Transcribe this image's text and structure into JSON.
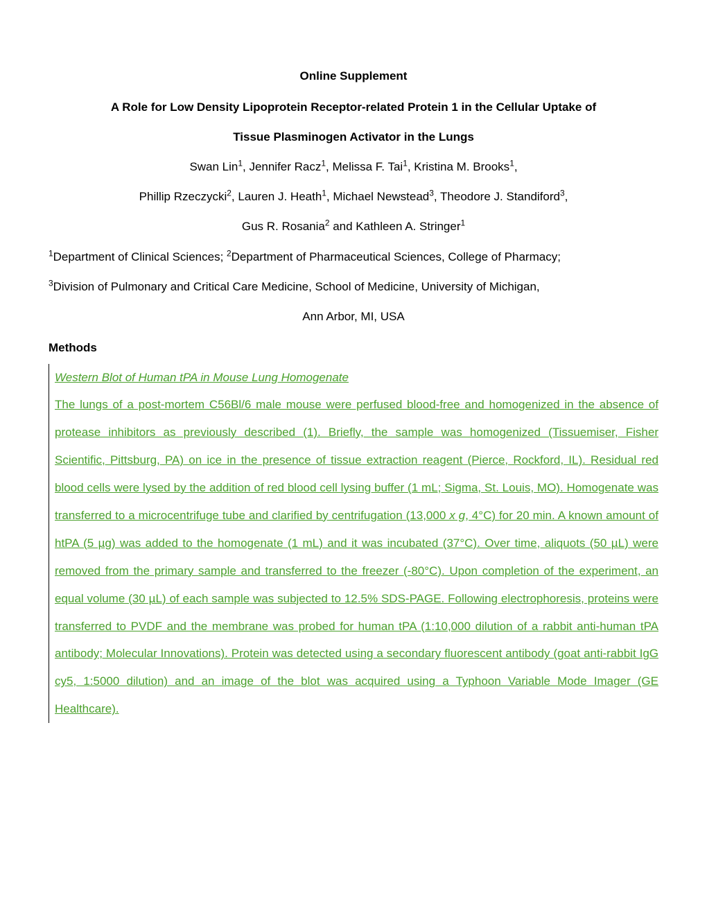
{
  "header": {
    "supplement_label": "Online Supplement"
  },
  "title": {
    "line1": "A Role for Low Density Lipoprotein Receptor-related Protein 1 in the Cellular Uptake of",
    "line2": "Tissue Plasminogen Activator in the Lungs"
  },
  "authors": {
    "line1_pre_sup1": "Swan Lin",
    "sup1": "1",
    "line1_sep1": ", Jennifer Racz",
    "sup2": "1",
    "line1_sep2": ", Melissa F. Tai",
    "sup3": "1",
    "line1_sep3": ", Kristina M. Brooks",
    "sup4": "1",
    "line1_end": ",",
    "line2_a": "Phillip Rzeczycki",
    "sup5": "2",
    "line2_sep1": ", Lauren J. Heath",
    "sup6": "1",
    "line2_sep1b": ", Michael Newstead",
    "sup7": "3",
    "line2_sep2": ", Theodore J. Standiford",
    "sup8": "3",
    "line2_end": ",",
    "line3_a": "Gus R. Rosania",
    "sup9": "2",
    "line3_sep": " and Kathleen A. Stringer",
    "sup10": "1"
  },
  "affiliations": {
    "sup1": "1",
    "text1": "Department of Clinical Sciences; ",
    "sup2": "2",
    "text2": "Department of Pharmaceutical Sciences, College of Pharmacy;",
    "sup3": "3",
    "text3": "Division of Pulmonary and Critical Care Medicine, School of Medicine, University of Michigan,"
  },
  "location": "Ann Arbor, MI, USA",
  "methods_heading": "Methods",
  "tracked": {
    "subheading": "Western Blot of Human tPA in Mouse Lung Homogenate ",
    "body_part1": "The lungs of a post-mortem C56Bl/6 male mouse were perfused blood-free and homogenized in the absence of protease inhibitors as previously described (1). Briefly, the sample was homogenized (Tissuemiser, Fisher Scientific, Pittsburg, PA) on ice in the presence of tissue extraction reagent (Pierce, Rockford, IL). Residual red blood cells were lysed by the addition of red blood cell lysing buffer (1 mL; Sigma, St. Louis, MO).  Homogenate was transferred to a microcentrifuge tube and clarified by centrifugation (13,000 ",
    "body_italic": "x g",
    "body_part2": ", 4°C) for 20 min. A known amount of htPA (5 µg) was added to the homogenate (1 mL) and it was incubated (37°C). Over time, aliquots (50 µL) were removed from the primary sample and transferred to the freezer (-80°C). Upon completion of the experiment, an equal volume (30 µL) of each sample was subjected to 12.5% SDS-PAGE. Following electrophoresis, proteins were transferred to PVDF and the membrane was probed for human tPA (1:10,000 dilution of a rabbit anti-human tPA antibody; Molecular Innovations). Protein was detected using a secondary fluorescent antibody (goat anti-rabbit IgG cy5, 1:5000 dilution) and an image of the blot was acquired using a Typhoon Variable Mode Imager (GE Healthcare). "
  },
  "colors": {
    "text": "#000000",
    "tracked_green": "#4aa02c",
    "background": "#ffffff"
  },
  "typography": {
    "base_fontsize": 17,
    "font_family": "Arial",
    "line_height": 2.3
  }
}
